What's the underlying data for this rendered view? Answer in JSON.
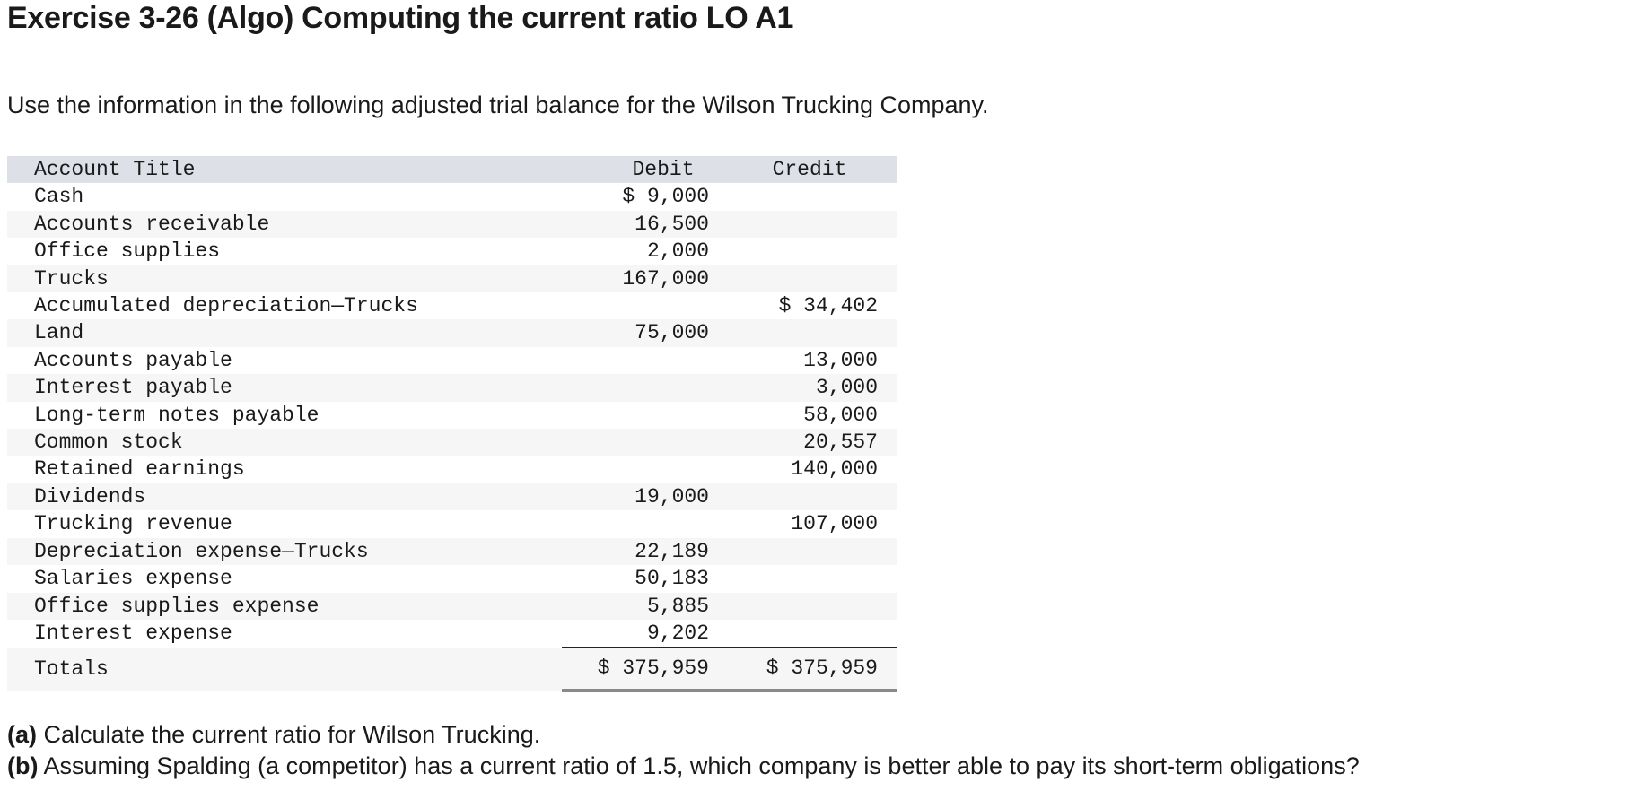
{
  "title": "Exercise 3-26 (Algo) Computing the current ratio LO A1",
  "intro": "Use the information in the following adjusted trial balance for the Wilson Trucking Company.",
  "table": {
    "headers": {
      "account": "Account Title",
      "debit": "Debit",
      "credit": "Credit"
    },
    "rows": [
      {
        "account": "Cash",
        "debit": "$ 9,000",
        "credit": ""
      },
      {
        "account": "Accounts receivable",
        "debit": "16,500",
        "credit": ""
      },
      {
        "account": "Office supplies",
        "debit": "2,000",
        "credit": ""
      },
      {
        "account": "Trucks",
        "debit": "167,000",
        "credit": ""
      },
      {
        "account": "Accumulated depreciation—Trucks",
        "debit": "",
        "credit": "$ 34,402"
      },
      {
        "account": "Land",
        "debit": "75,000",
        "credit": ""
      },
      {
        "account": "Accounts payable",
        "debit": "",
        "credit": "13,000"
      },
      {
        "account": "Interest payable",
        "debit": "",
        "credit": "3,000"
      },
      {
        "account": "Long-term notes payable",
        "debit": "",
        "credit": "58,000"
      },
      {
        "account": "Common stock",
        "debit": "",
        "credit": "20,557"
      },
      {
        "account": "Retained earnings",
        "debit": "",
        "credit": "140,000"
      },
      {
        "account": "Dividends",
        "debit": "19,000",
        "credit": ""
      },
      {
        "account": "Trucking revenue",
        "debit": "",
        "credit": "107,000"
      },
      {
        "account": "Depreciation expense—Trucks",
        "debit": "22,189",
        "credit": ""
      },
      {
        "account": "Salaries expense",
        "debit": "50,183",
        "credit": ""
      },
      {
        "account": "Office supplies expense",
        "debit": "5,885",
        "credit": ""
      },
      {
        "account": "Interest expense",
        "debit": "9,202",
        "credit": ""
      }
    ],
    "totals": {
      "label": "Totals",
      "debit": "$ 375,959",
      "credit": "$ 375,959"
    }
  },
  "questions": {
    "a": {
      "marker": "(a)",
      "text": " Calculate the current ratio for Wilson Trucking."
    },
    "b": {
      "marker": "(b)",
      "text": " Assuming Spalding (a competitor) has a current ratio of 1.5, which company is better able to pay its short-term obligations?"
    }
  }
}
